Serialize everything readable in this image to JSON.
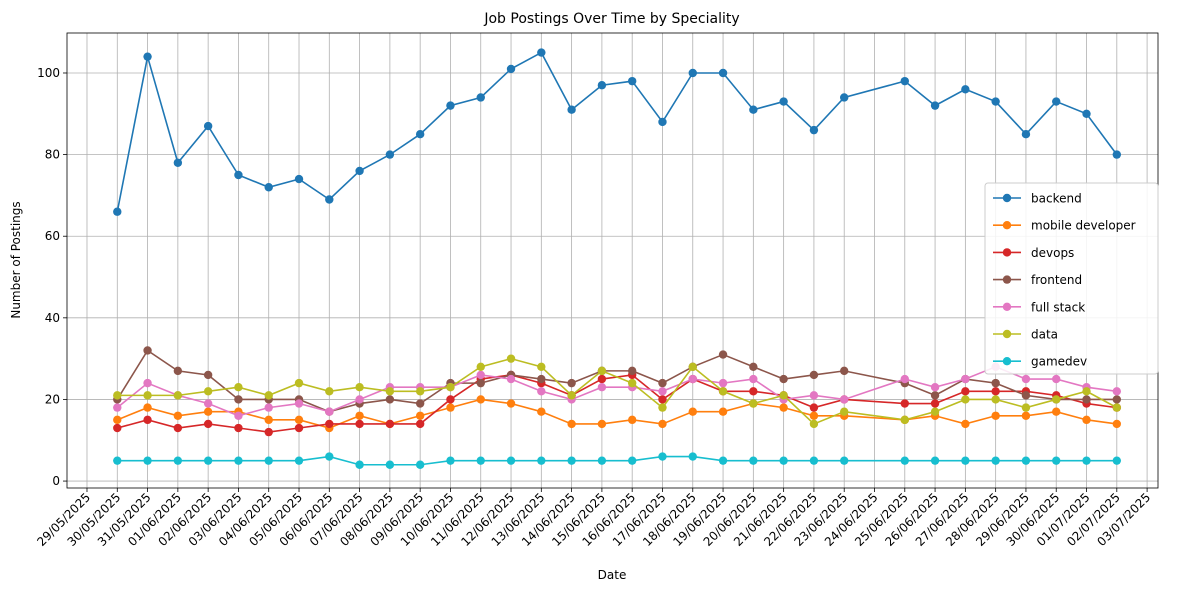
{
  "chart_data": {
    "type": "line",
    "title": "Job Postings Over Time by Speciality",
    "xlabel": "Date",
    "ylabel": "Number of Postings",
    "ylim": [
      -1.7,
      109.8
    ],
    "xlim": [
      "28/05/2025",
      "03/07/2025"
    ],
    "yticks": [
      0,
      20,
      40,
      60,
      80,
      100
    ],
    "xticks": [
      "29/05/2025",
      "30/05/2025",
      "31/05/2025",
      "01/06/2025",
      "02/06/2025",
      "03/06/2025",
      "04/06/2025",
      "05/06/2025",
      "06/06/2025",
      "07/06/2025",
      "08/06/2025",
      "09/06/2025",
      "10/06/2025",
      "11/06/2025",
      "12/06/2025",
      "13/06/2025",
      "14/06/2025",
      "15/06/2025",
      "16/06/2025",
      "17/06/2025",
      "18/06/2025",
      "19/06/2025",
      "20/06/2025",
      "21/06/2025",
      "22/06/2025",
      "23/06/2025",
      "24/06/2025",
      "25/06/2025",
      "26/06/2025",
      "27/06/2025",
      "28/06/2025",
      "29/06/2025",
      "30/06/2025",
      "01/07/2025",
      "02/07/2025",
      "03/07/2025"
    ],
    "grid": true,
    "legend_position": "center-right",
    "x": [
      "30/05/2025",
      "31/05/2025",
      "01/06/2025",
      "02/06/2025",
      "03/06/2025",
      "04/06/2025",
      "05/06/2025",
      "06/06/2025",
      "07/06/2025",
      "08/06/2025",
      "09/06/2025",
      "10/06/2025",
      "11/06/2025",
      "12/06/2025",
      "13/06/2025",
      "14/06/2025",
      "15/06/2025",
      "16/06/2025",
      "17/06/2025",
      "18/06/2025",
      "19/06/2025",
      "20/06/2025",
      "21/06/2025",
      "22/06/2025",
      "23/06/2025",
      "25/06/2025",
      "26/06/2025",
      "27/06/2025",
      "28/06/2025",
      "29/06/2025",
      "30/06/2025",
      "01/07/2025",
      "02/07/2025"
    ],
    "series": [
      {
        "name": "backend",
        "color": "#1f77b4",
        "values": [
          66,
          104,
          78,
          87,
          75,
          72,
          74,
          69,
          76,
          80,
          85,
          92,
          94,
          101,
          105,
          91,
          97,
          98,
          88,
          100,
          100,
          91,
          93,
          86,
          94,
          98,
          92,
          96,
          93,
          85,
          93,
          90,
          80
        ]
      },
      {
        "name": "mobile developer",
        "color": "#ff7f0e",
        "values": [
          15,
          18,
          16,
          17,
          17,
          15,
          15,
          13,
          16,
          14,
          16,
          18,
          20,
          19,
          17,
          14,
          14,
          15,
          14,
          17,
          17,
          19,
          18,
          16,
          16,
          15,
          16,
          14,
          16,
          16,
          17,
          15,
          14
        ]
      },
      {
        "name": "devops",
        "color": "#d62728",
        "values": [
          13,
          15,
          13,
          14,
          13,
          12,
          13,
          14,
          14,
          14,
          14,
          20,
          25,
          26,
          24,
          21,
          25,
          26,
          20,
          25,
          22,
          22,
          21,
          18,
          20,
          19,
          19,
          22,
          22,
          22,
          21,
          19,
          18
        ]
      },
      {
        "name": "frontend",
        "color": "#8c564b",
        "values": [
          20,
          32,
          27,
          26,
          20,
          20,
          20,
          17,
          19,
          20,
          19,
          24,
          24,
          26,
          25,
          24,
          27,
          27,
          24,
          28,
          31,
          28,
          25,
          26,
          27,
          24,
          21,
          25,
          24,
          21,
          20,
          20,
          20
        ]
      },
      {
        "name": "full stack",
        "color": "#e377c2",
        "values": [
          18,
          24,
          21,
          19,
          16,
          18,
          19,
          17,
          20,
          23,
          23,
          23,
          26,
          25,
          22,
          20,
          23,
          23,
          22,
          25,
          24,
          25,
          20,
          21,
          20,
          25,
          23,
          25,
          28,
          25,
          25,
          23,
          22
        ]
      },
      {
        "name": "data",
        "color": "#bcbd22",
        "values": [
          21,
          21,
          21,
          22,
          23,
          21,
          24,
          22,
          23,
          22,
          22,
          23,
          28,
          30,
          28,
          21,
          27,
          24,
          18,
          28,
          22,
          19,
          21,
          14,
          17,
          15,
          17,
          20,
          20,
          18,
          20,
          22,
          18
        ]
      },
      {
        "name": "gamedev",
        "color": "#17becf",
        "values": [
          5,
          5,
          5,
          5,
          5,
          5,
          5,
          6,
          4,
          4,
          4,
          5,
          5,
          5,
          5,
          5,
          5,
          5,
          6,
          6,
          5,
          5,
          5,
          5,
          5,
          5,
          5,
          5,
          5,
          5,
          5,
          5,
          5
        ]
      }
    ]
  }
}
